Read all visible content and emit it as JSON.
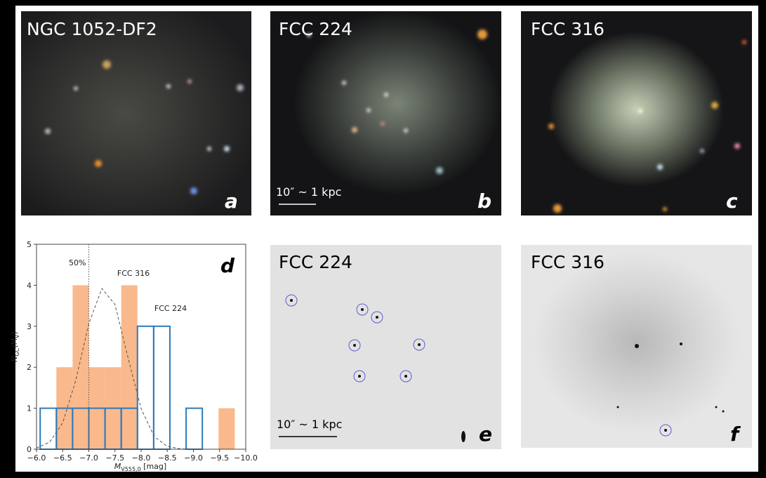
{
  "panels": {
    "a": {
      "title": "NGC 1052-DF2",
      "letter": "a"
    },
    "b": {
      "title": "FCC 224",
      "letter": "b",
      "scale_bar": "10″ ~ 1 kpc"
    },
    "c": {
      "title": "FCC 316",
      "letter": "c"
    },
    "e": {
      "title": "FCC 224",
      "letter": "e",
      "scale_bar": "10″ ~ 1 kpc"
    },
    "f": {
      "title": "FCC 316",
      "letter": "f"
    }
  },
  "chart_data": {
    "type": "histogram",
    "letter": "d",
    "ylabel_parts": [
      "N",
      "GC",
      "(M",
      "V",
      ")"
    ],
    "xlabel_parts": [
      "M",
      "V555,0",
      " [mag]"
    ],
    "bins": [
      -6.07,
      -6.38,
      -6.69,
      -7.0,
      -7.31,
      -7.62,
      -7.93,
      -8.24,
      -8.55,
      -8.86,
      -9.17,
      -9.48,
      -9.79
    ],
    "series": [
      {
        "name": "FCC 316",
        "color": "#f9b98c",
        "filled": true,
        "values": [
          0,
          2,
          4,
          2,
          2,
          4,
          0,
          0,
          0,
          0,
          0,
          1
        ]
      },
      {
        "name": "FCC 224",
        "color": "#2e7bbb",
        "filled": false,
        "values": [
          1,
          1,
          1,
          1,
          1,
          1,
          3,
          3,
          0,
          1,
          0,
          0
        ]
      }
    ],
    "curve": {
      "x": [
        -6.0,
        -6.25,
        -6.5,
        -6.75,
        -7.0,
        -7.25,
        -7.5,
        -7.75,
        -8.0,
        -8.25,
        -8.5,
        -8.75,
        -9.0
      ],
      "values": [
        0.03,
        0.17,
        0.64,
        1.68,
        3.06,
        3.92,
        3.53,
        2.23,
        0.99,
        0.31,
        0.07,
        0.01,
        0.0
      ]
    },
    "vline": {
      "x": -7.0,
      "label": "50%"
    },
    "xlim": [
      -6.0,
      -10.0
    ],
    "ylim": [
      0,
      5
    ],
    "xticks": [
      {
        "value": -6.0,
        "label": "−6.0"
      },
      {
        "value": -6.5,
        "label": "−6.5"
      },
      {
        "value": -7.0,
        "label": "−7.0"
      },
      {
        "value": -7.5,
        "label": "−7.5"
      },
      {
        "value": -8.0,
        "label": "−8.0"
      },
      {
        "value": -8.5,
        "label": "−8.5"
      },
      {
        "value": -9.0,
        "label": "−9.0"
      },
      {
        "value": -9.5,
        "label": "−9.5"
      },
      {
        "value": -10.0,
        "label": "−10.0"
      }
    ],
    "yticks": [
      0,
      1,
      2,
      3,
      4,
      5
    ]
  }
}
